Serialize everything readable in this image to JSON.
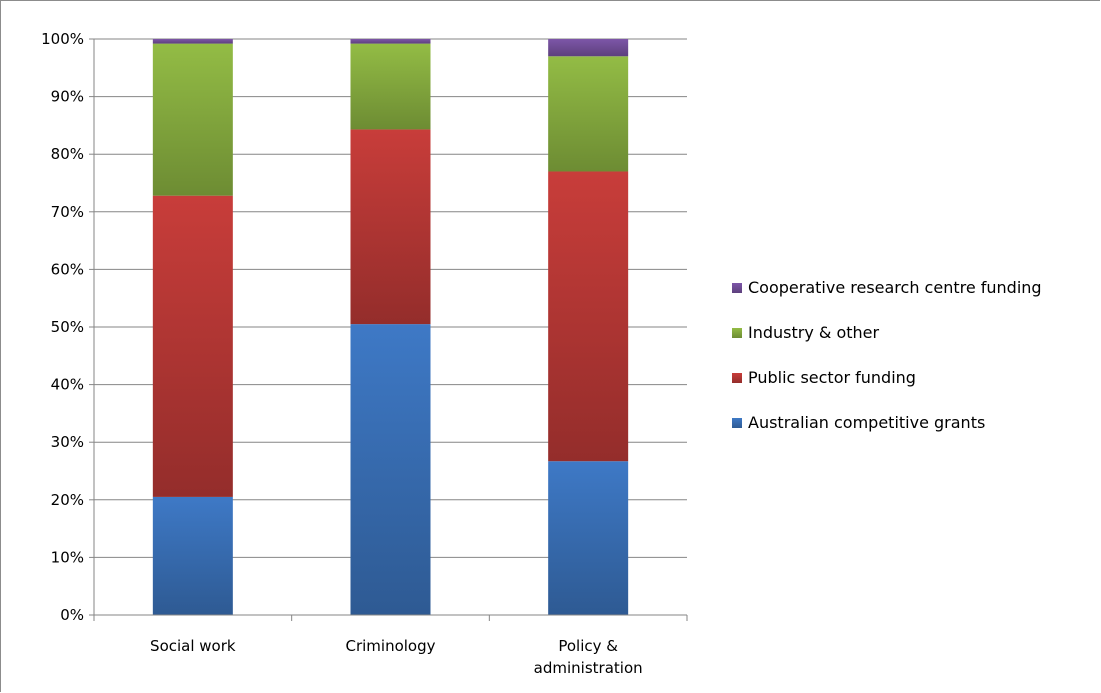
{
  "chart_data": {
    "type": "bar",
    "stacked": true,
    "percent": true,
    "categories": [
      [
        "Social work"
      ],
      [
        "Criminology"
      ],
      [
        "Policy &",
        "administration"
      ]
    ],
    "series": [
      {
        "name": "Australian competitive grants",
        "color": "#3b73bd",
        "values": [
          20.5,
          50.5,
          26.7
        ]
      },
      {
        "name": "Public sector funding",
        "color": "#be3a37",
        "values": [
          52.3,
          33.8,
          50.3
        ]
      },
      {
        "name": "Industry & other",
        "color": "#8cb342",
        "values": [
          26.4,
          14.9,
          20.0
        ]
      },
      {
        "name": "Cooperative research centre funding",
        "color": "#7752a0",
        "values": [
          0.8,
          0.8,
          3.0
        ]
      }
    ],
    "ylim": [
      0,
      100
    ],
    "yticks": [
      "0%",
      "10%",
      "20%",
      "30%",
      "40%",
      "50%",
      "60%",
      "70%",
      "80%",
      "90%",
      "100%"
    ],
    "grid": true,
    "legend": "right",
    "legend_order": [
      "Cooperative research centre funding",
      "Industry & other",
      "Public sector funding",
      "Australian competitive grants"
    ]
  }
}
